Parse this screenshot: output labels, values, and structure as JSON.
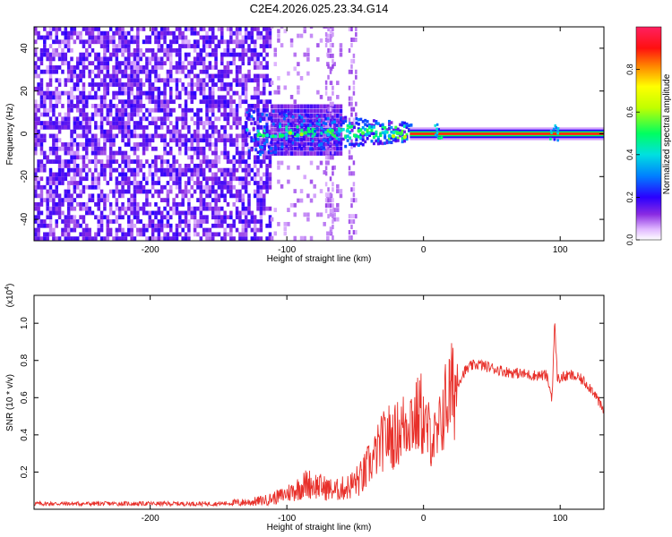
{
  "title": "C2E4.2026.025.23.34.G14",
  "chart_data": [
    {
      "type": "heatmap",
      "xlabel": "Height of straight line (km)",
      "ylabel": "Frequency (Hz)",
      "xlim": [
        -285,
        132
      ],
      "ylim": [
        -50,
        50
      ],
      "x_ticks": [
        -200,
        -100,
        0,
        100
      ],
      "x_tick_labels": [
        "-200",
        "-100",
        "0",
        "100"
      ],
      "y_ticks": [
        -40,
        -20,
        0,
        20,
        40
      ],
      "y_tick_labels": [
        "-40",
        "-20",
        "0",
        "20",
        "40"
      ],
      "colorbar": {
        "label": "Normalized spectral amplitude",
        "range": [
          0,
          1
        ],
        "ticks": [
          0.0,
          0.2,
          0.4,
          0.6,
          0.8
        ],
        "tick_labels": [
          "0.0",
          "0.2",
          "0.4",
          "0.6",
          "0.8"
        ]
      },
      "grid": false
    },
    {
      "type": "line",
      "xlabel": "Height of straight line (km)",
      "ylabel": "SNR (10 * v/v)",
      "y_multiplier": "(x10",
      "y_multiplier_exp": "4",
      "y_multiplier_close": ")",
      "xlim": [
        -285,
        132
      ],
      "ylim": [
        0,
        1.15
      ],
      "x_ticks": [
        -200,
        -100,
        0,
        100
      ],
      "x_tick_labels": [
        "-200",
        "-100",
        "0",
        "100"
      ],
      "y_ticks": [
        0.2,
        0.4,
        0.6,
        0.8,
        1.0
      ],
      "y_tick_labels": [
        "0.2",
        "0.4",
        "0.6",
        "0.8",
        "1.0"
      ],
      "color": "#e8302a",
      "grid": false,
      "series": [
        {
          "x": [
            -285,
            -260,
            -230,
            -200,
            -170,
            -150,
            -135,
            -125,
            -115,
            -105,
            -95,
            -85,
            -75,
            -65,
            -55,
            -45,
            -38,
            -32,
            -26,
            -22,
            -18,
            -14,
            -10,
            -6,
            -2,
            2,
            6,
            10,
            14,
            18,
            22,
            26,
            30,
            35,
            40,
            45,
            50,
            60,
            70,
            80,
            90,
            94,
            96,
            98,
            102,
            108,
            115,
            120,
            125,
            128,
            132
          ],
          "y": [
            0.03,
            0.03,
            0.03,
            0.03,
            0.03,
            0.03,
            0.035,
            0.04,
            0.05,
            0.07,
            0.1,
            0.14,
            0.12,
            0.1,
            0.12,
            0.17,
            0.25,
            0.34,
            0.4,
            0.38,
            0.42,
            0.45,
            0.5,
            0.48,
            0.52,
            0.42,
            0.4,
            0.36,
            0.52,
            0.6,
            0.64,
            0.69,
            0.74,
            0.77,
            0.78,
            0.77,
            0.76,
            0.74,
            0.73,
            0.72,
            0.72,
            0.6,
            1.0,
            0.7,
            0.71,
            0.72,
            0.7,
            0.67,
            0.63,
            0.58,
            0.52
          ]
        }
      ]
    }
  ]
}
